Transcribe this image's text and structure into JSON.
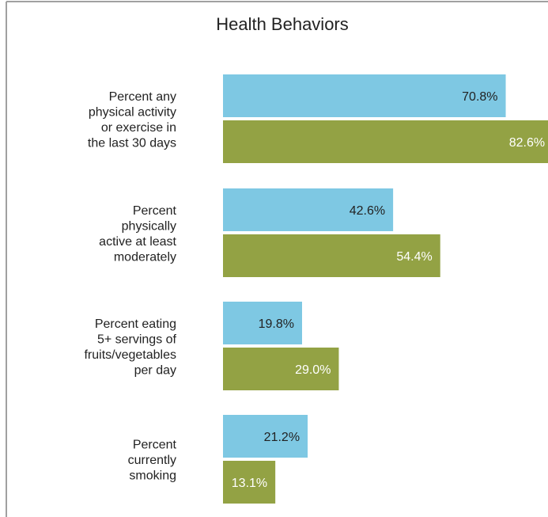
{
  "chart_data": {
    "type": "bar",
    "orientation": "horizontal",
    "title": "Health Behaviors",
    "categories": [
      [
        "Percent any",
        "physical activity",
        "or exercise in",
        "the last 30 days"
      ],
      [
        "Percent",
        "physically",
        "active at least",
        "moderately"
      ],
      [
        "Percent eating",
        "5+ servings of",
        "fruits/vegetables",
        "per day"
      ],
      [
        "Percent",
        "currently",
        "smoking"
      ]
    ],
    "series": [
      {
        "values": [
          70.8,
          42.6,
          19.8,
          21.2
        ],
        "labels": [
          "70.8%",
          "42.6%",
          "19.8%",
          "21.2%"
        ],
        "color": "#7ec8e3",
        "label_color": "#222222"
      },
      {
        "values": [
          82.6,
          54.4,
          29.0,
          13.1
        ],
        "labels": [
          "82.6%",
          "54.4%",
          "29.0%",
          "13.1%"
        ],
        "color": "#93a244",
        "label_color": "#ffffff"
      }
    ],
    "xlim": [
      0,
      100
    ],
    "grid": false,
    "legend": "none",
    "border_color": "#a0a0a0"
  }
}
